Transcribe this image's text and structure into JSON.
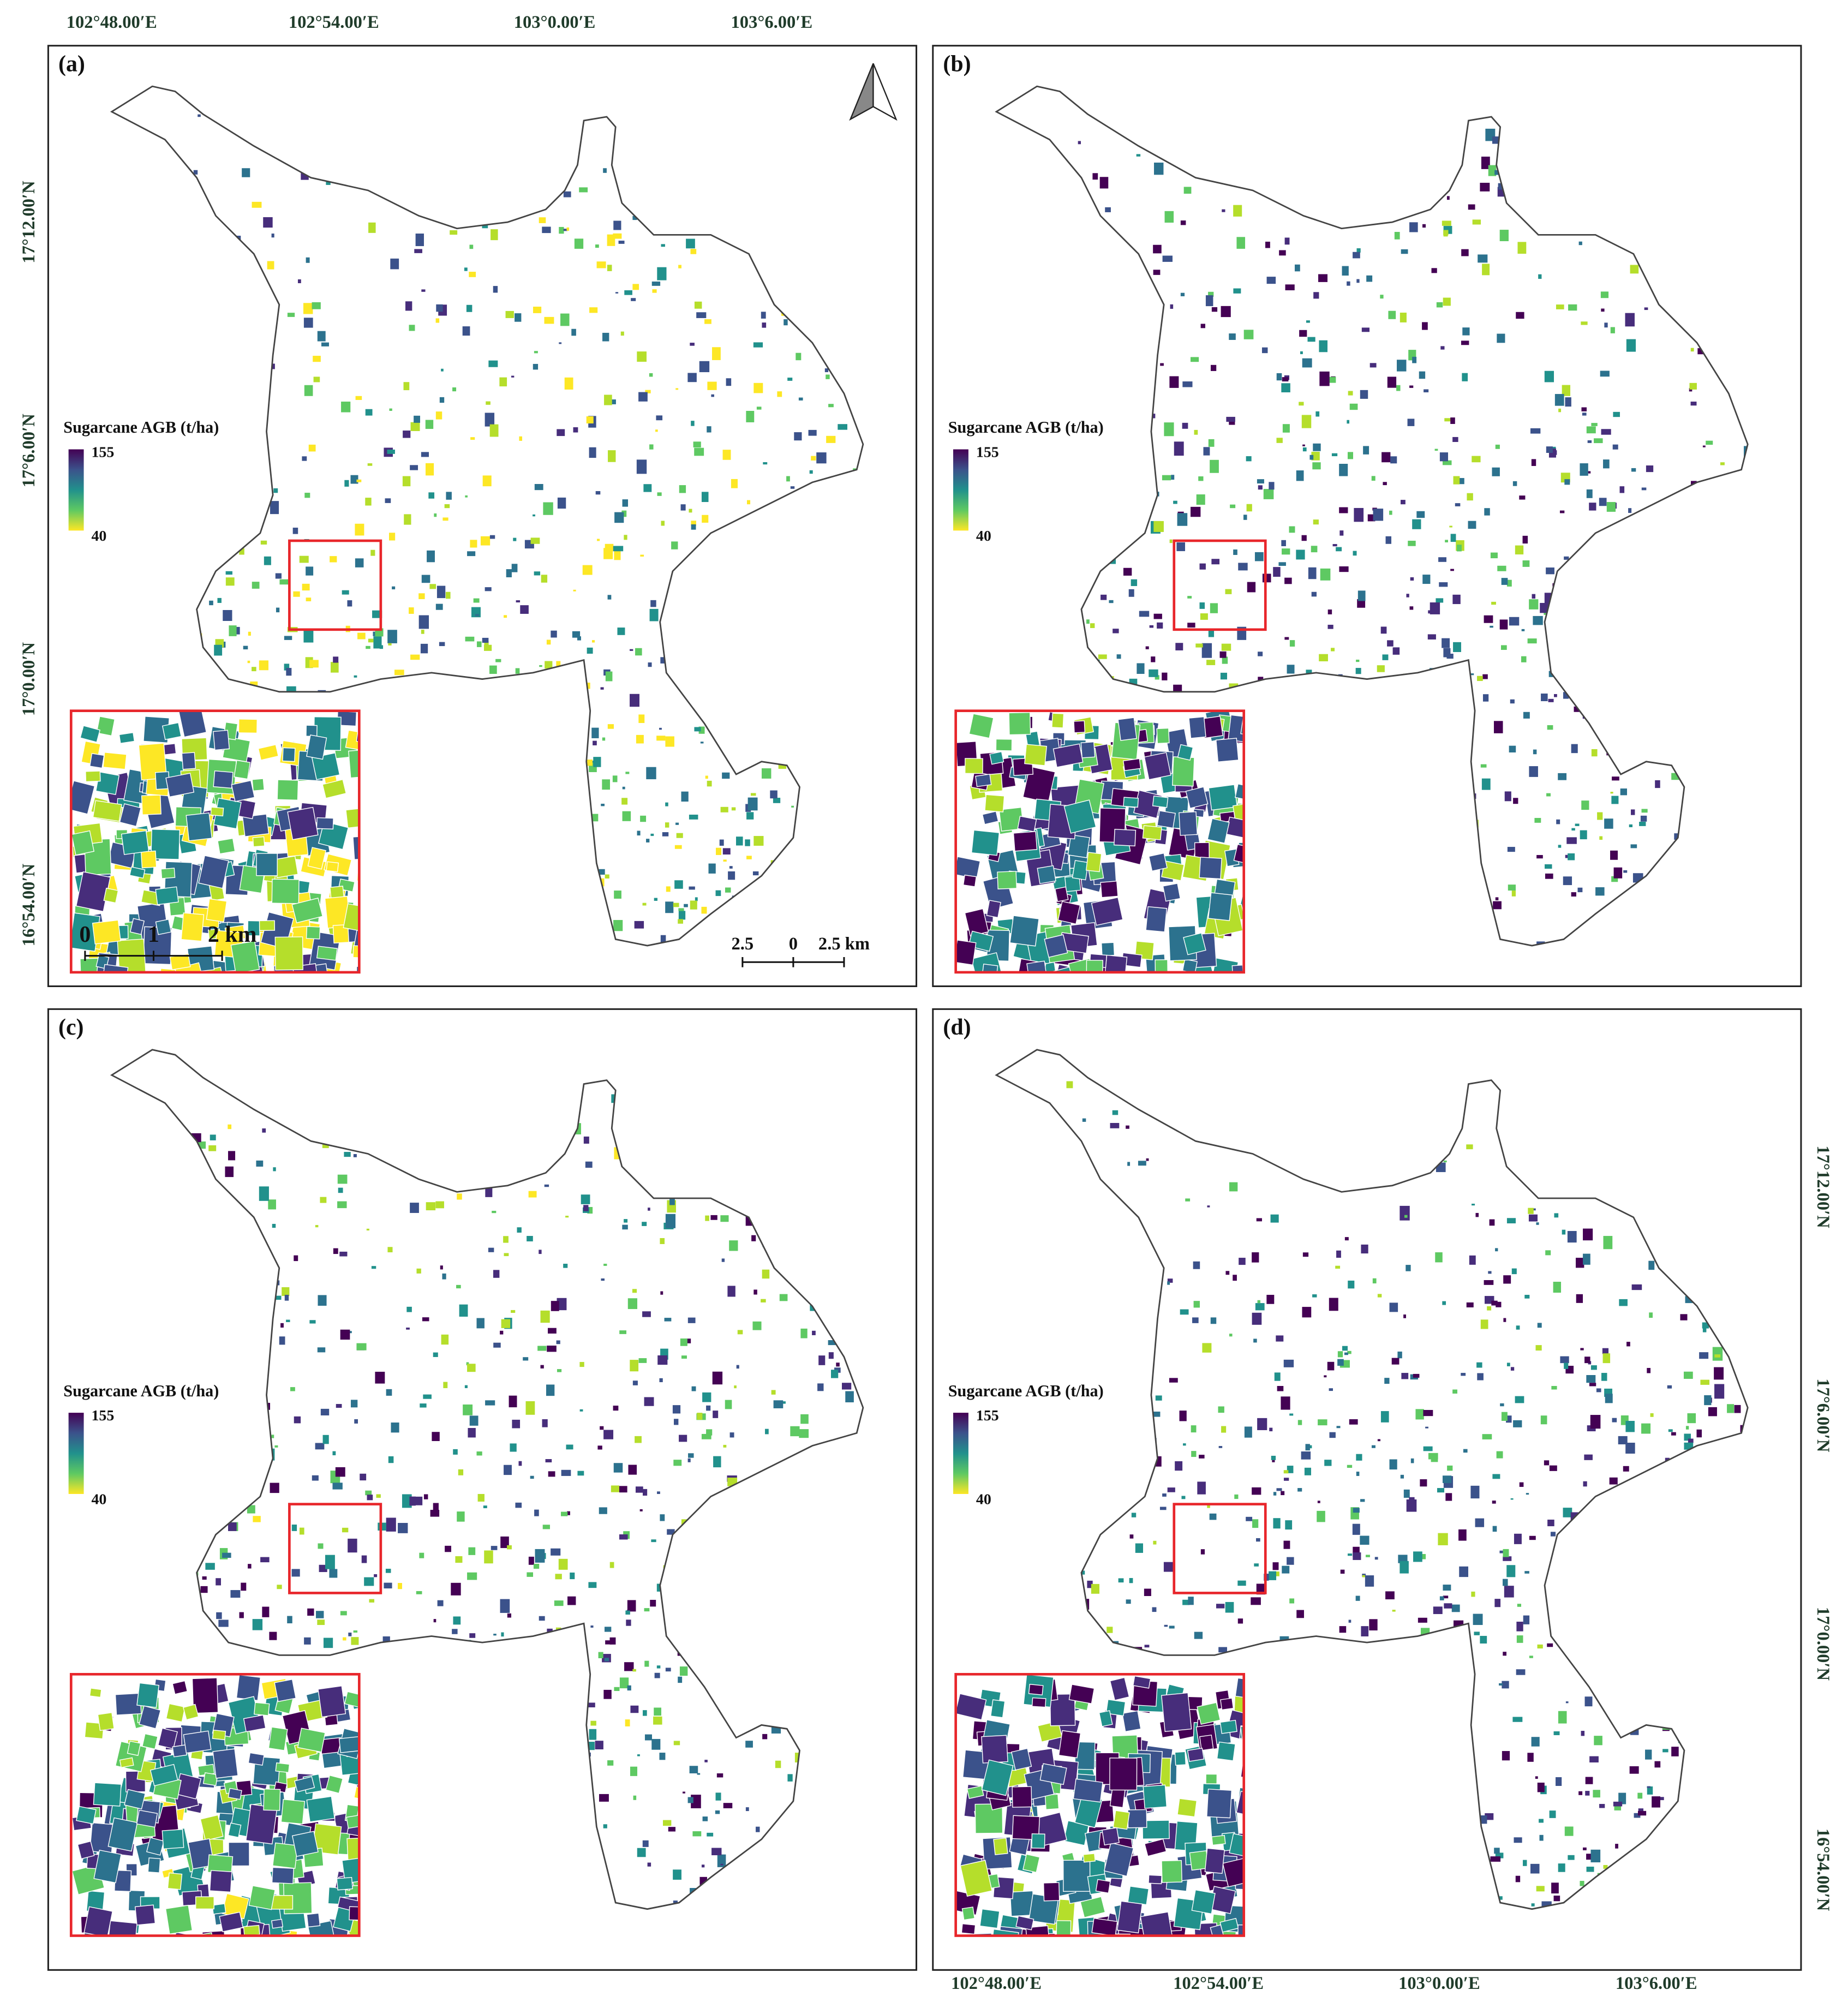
{
  "panels": [
    {
      "label": "(a)"
    },
    {
      "label": "(b)"
    },
    {
      "label": "(c)"
    },
    {
      "label": "(d)"
    }
  ],
  "legend": {
    "title": "Sugarcane AGB (t/ha)",
    "max": 155,
    "min": 40
  },
  "longitude_labels": [
    "102°48.00′E",
    "102°54.00′E",
    "103°0.00′E",
    "103°6.00′E"
  ],
  "latitude_labels": [
    "17°12.00′N",
    "17°6.00′N",
    "17°0.00′N",
    "16°54.00′N"
  ],
  "scale_bar": [
    "2.5",
    "0",
    "2.5 km"
  ],
  "inset_scale_bar": [
    "0",
    "1",
    "2 km"
  ]
}
